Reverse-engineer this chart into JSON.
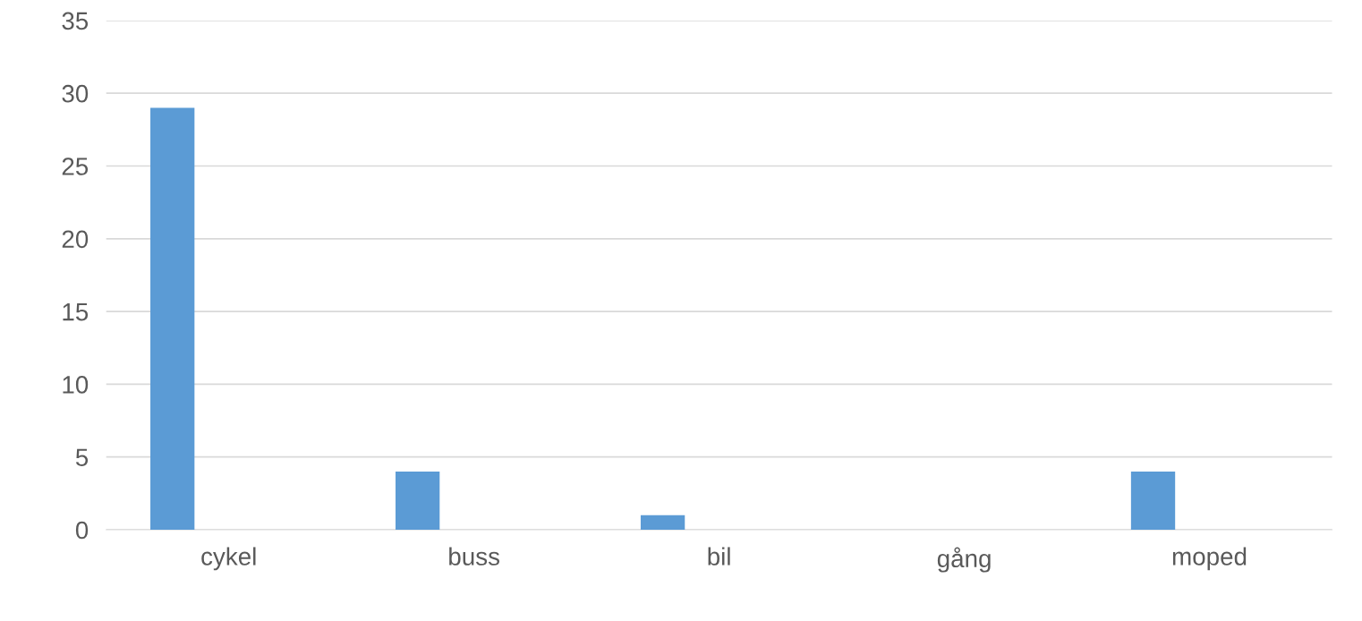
{
  "chart_data": {
    "type": "bar",
    "categories": [
      "cykel",
      "buss",
      "bil",
      "gång",
      "moped"
    ],
    "values": [
      29,
      4,
      1,
      0,
      4
    ],
    "color": "#5b9bd5",
    "ylim": [
      0,
      35
    ],
    "yticks": [
      0,
      5,
      10,
      15,
      20,
      25,
      30,
      35
    ],
    "grid": "y"
  }
}
